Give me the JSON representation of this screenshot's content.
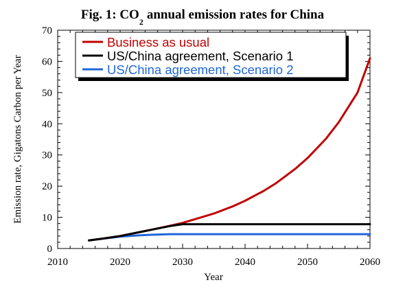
{
  "chart_data": {
    "type": "line",
    "title": {
      "prefix": "Fig. 1: CO",
      "subscript": "2",
      "suffix": "annual emission rates for China"
    },
    "xlabel": "Year",
    "ylabel": "Emission rate, Gigatons Carbon per Year",
    "xlim": [
      2010,
      2060
    ],
    "ylim": [
      0,
      70
    ],
    "xticks": [
      2010,
      2020,
      2030,
      2040,
      2050,
      2060
    ],
    "yticks": [
      0,
      10,
      20,
      30,
      40,
      50,
      60,
      70
    ],
    "grid": false,
    "legend_position": "top-right",
    "series": [
      {
        "name": "Business as usual",
        "color": "#c00000",
        "x": [
          2015,
          2017,
          2020,
          2023,
          2025,
          2028,
          2030,
          2033,
          2035,
          2038,
          2040,
          2043,
          2045,
          2048,
          2050,
          2053,
          2055,
          2058,
          2060
        ],
        "y": [
          2.6,
          3.1,
          4.0,
          5.2,
          6.0,
          7.3,
          8.2,
          10.0,
          11.2,
          13.5,
          15.3,
          18.5,
          21.0,
          25.5,
          29.0,
          35.3,
          40.5,
          50.0,
          61.0
        ]
      },
      {
        "name": "US/China agreement, Scenario 1",
        "color": "#000000",
        "x": [
          2015,
          2017,
          2020,
          2023,
          2025,
          2028,
          2030,
          2035,
          2040,
          2045,
          2050,
          2055,
          2060
        ],
        "y": [
          2.6,
          3.1,
          4.0,
          5.2,
          6.0,
          7.2,
          7.8,
          7.8,
          7.8,
          7.8,
          7.8,
          7.8,
          7.8
        ]
      },
      {
        "name": "US/China agreement, Scenario 2",
        "color": "#1f66d9",
        "x": [
          2015,
          2017,
          2020,
          2023,
          2025,
          2028,
          2030,
          2035,
          2040,
          2045,
          2050,
          2055,
          2060
        ],
        "y": [
          2.6,
          3.1,
          3.8,
          4.2,
          4.4,
          4.6,
          4.6,
          4.6,
          4.6,
          4.6,
          4.6,
          4.6,
          4.6
        ]
      }
    ]
  }
}
